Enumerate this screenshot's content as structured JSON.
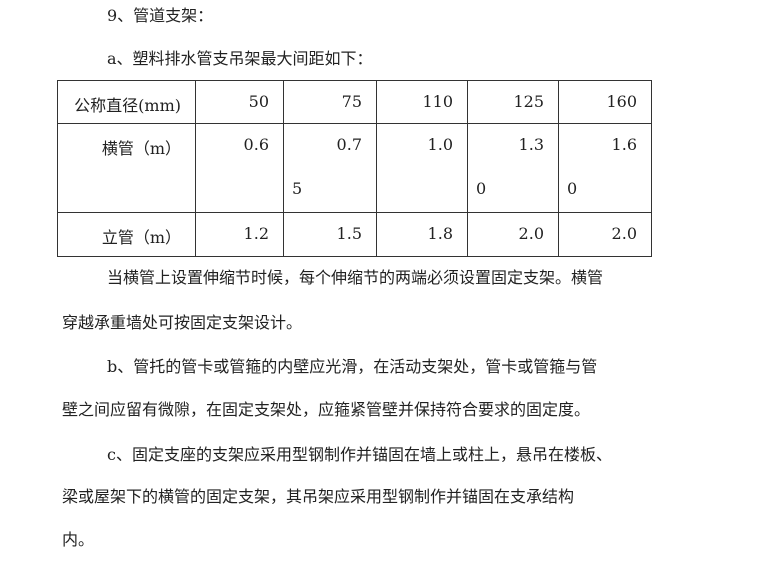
{
  "heading": "9、管道支架：",
  "subheading": "a、塑料排水管支吊架最大间距如下：",
  "table": {
    "rows": [
      {
        "label": "公称直径(mm)",
        "cells": [
          {
            "l1": "50",
            "l2": ""
          },
          {
            "l1": "75",
            "l2": ""
          },
          {
            "l1": "110",
            "l2": ""
          },
          {
            "l1": "125",
            "l2": ""
          },
          {
            "l1": "160",
            "l2": ""
          }
        ]
      },
      {
        "label": "横管（m）",
        "cells": [
          {
            "l1": "0.6",
            "l2": ""
          },
          {
            "l1": "0.7",
            "l2": "5"
          },
          {
            "l1": "1.0",
            "l2": ""
          },
          {
            "l1": "1.3",
            "l2": "0"
          },
          {
            "l1": "1.6",
            "l2": "0"
          }
        ]
      },
      {
        "label": "立管（m）",
        "cells": [
          {
            "l1": "1.2",
            "l2": ""
          },
          {
            "l1": "1.5",
            "l2": ""
          },
          {
            "l1": "1.8",
            "l2": ""
          },
          {
            "l1": "2.0",
            "l2": ""
          },
          {
            "l1": "2.0",
            "l2": ""
          }
        ]
      }
    ]
  },
  "lines": [
    "当横管上设置伸缩节时候，每个伸缩节的两端必须设置固定支架。横管",
    "穿越承重墙处可按固定支架设计。",
    "b、管托的管卡或管箍的内壁应光滑，在活动支架处，管卡或管箍与管",
    "壁之间应留有微隙，在固定支架处，应箍紧管壁并保持符合要求的固定度。",
    "c、固定支座的支架应采用型钢制作并锚固在墙上或柱上，悬吊在楼板、",
    "梁或屋架下的横管的固定支架，其吊架应采用型钢制作并锚固在支承结构",
    "内。"
  ]
}
